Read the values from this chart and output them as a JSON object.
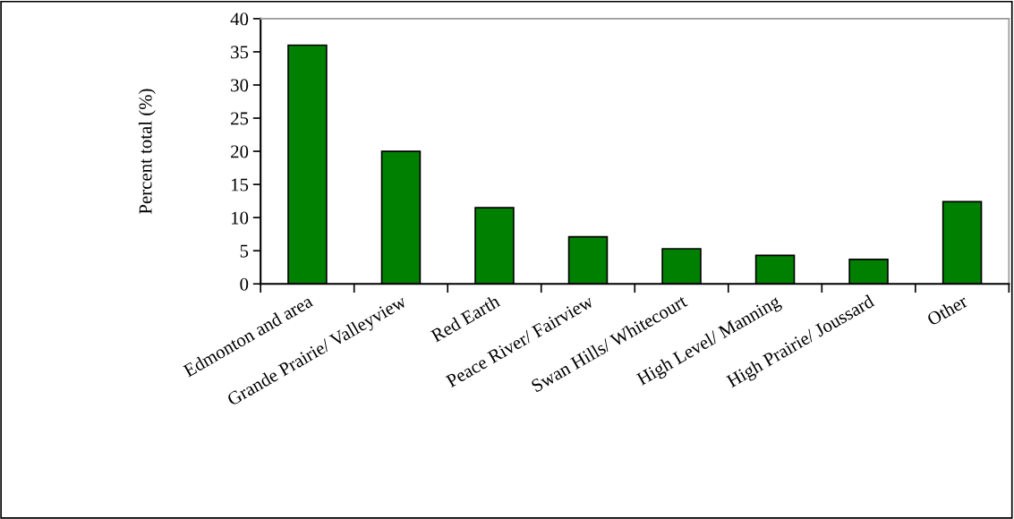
{
  "chart_data": {
    "type": "bar",
    "ylabel": "Percent total (%)",
    "categories": [
      "Edmonton and area",
      "Grande Prairie/ Valleyview",
      "Red Earth",
      "Peace River/ Fairview",
      "Swan Hills/ Whitecourt",
      "High Level/ Manning",
      "High Prairie/ Joussard",
      "Other"
    ],
    "values": [
      36,
      20,
      11.5,
      7.1,
      5.3,
      4.3,
      3.7,
      12.4
    ],
    "color": "#008000",
    "ylim": [
      0,
      40
    ],
    "yticks": [
      0,
      5,
      10,
      15,
      20,
      25,
      30,
      35,
      40
    ],
    "grid": false,
    "legend": false
  }
}
